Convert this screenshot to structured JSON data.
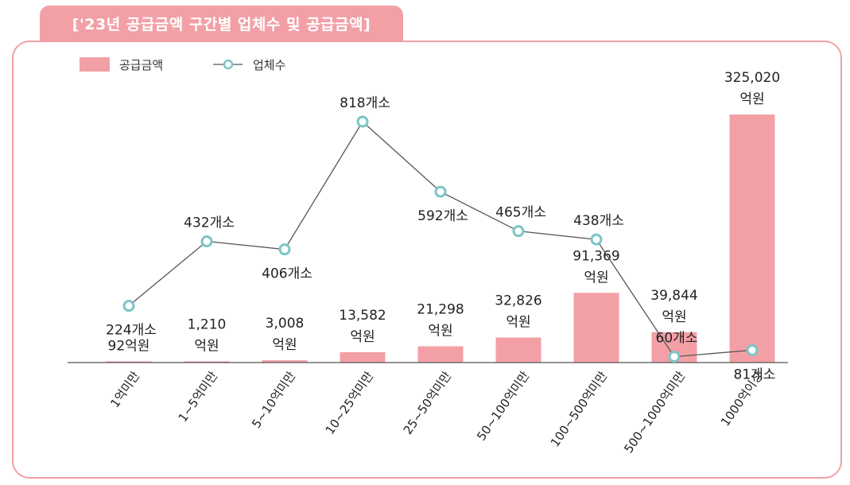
{
  "title": "['23년 공급금액 구간별 업체수 및 공급금액]",
  "colors": {
    "bar": "#f2a0a6",
    "line": "#555555",
    "marker": "#7cc5c6",
    "frame": "#f2a0a6"
  },
  "chart_data": {
    "type": "bar",
    "title": "['23년 공급금액 구간별 업체수 및 공급금액]",
    "categories": [
      "1억미만",
      "1~5억미만",
      "5~10억미만",
      "10~25억미만",
      "25~50억미만",
      "50~100억미만",
      "100~500억미만",
      "500~1000억미만",
      "1000억이상"
    ],
    "legend_position": "top-left",
    "grid": false,
    "ylim": [
      0,
      325020
    ],
    "y2lim": [
      0,
      900
    ],
    "series": [
      {
        "name": "공급금액",
        "type": "bar",
        "unit": "억원",
        "values": [
          92,
          1210,
          3008,
          13582,
          21298,
          32826,
          91369,
          39844,
          325020
        ],
        "labels": [
          [
            "92억원"
          ],
          [
            "1,210",
            "억원"
          ],
          [
            "3,008",
            "억원"
          ],
          [
            "13,582",
            "억원"
          ],
          [
            "21,298",
            "억원"
          ],
          [
            "32,826",
            "억원"
          ],
          [
            "91,369",
            "억원"
          ],
          [
            "39,844",
            "억원"
          ],
          [
            "325,020",
            "억원"
          ]
        ]
      },
      {
        "name": "업체수",
        "type": "line",
        "unit": "개소",
        "values": [
          224,
          432,
          406,
          818,
          592,
          465,
          438,
          60,
          81
        ],
        "labels": [
          "224개소",
          "432개소",
          "406개소",
          "818개소",
          "592개소",
          "465개소",
          "438개소",
          "60개소",
          "81개소"
        ]
      }
    ]
  }
}
